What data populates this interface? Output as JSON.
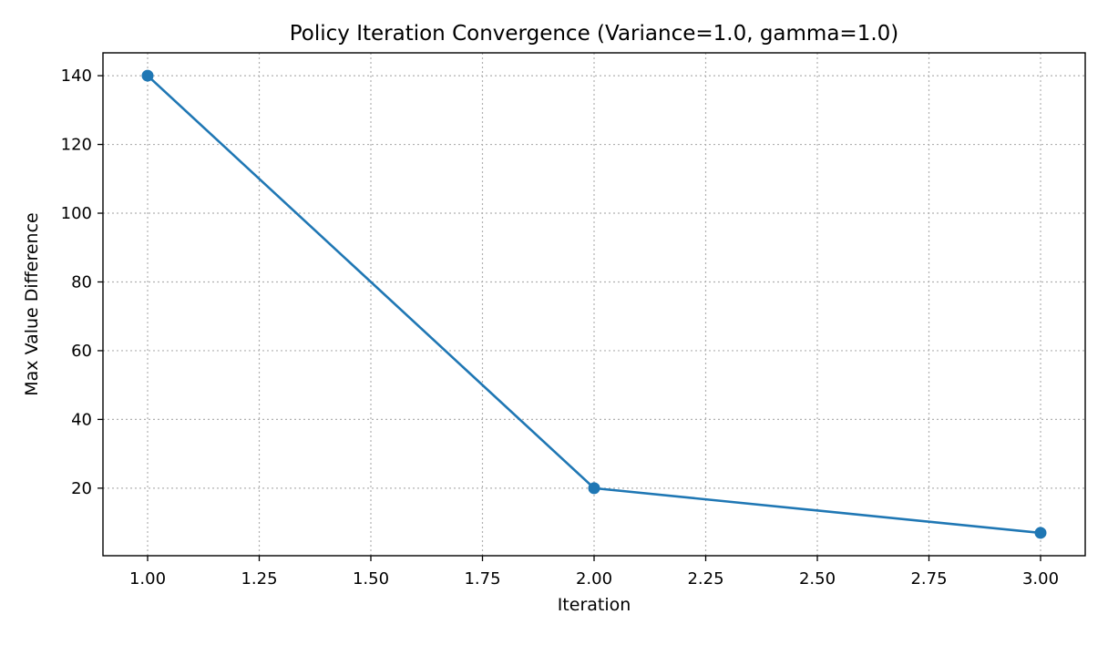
{
  "chart_data": {
    "type": "line",
    "title": "Policy Iteration Convergence (Variance=1.0, gamma=1.0)",
    "xlabel": "Iteration",
    "ylabel": "Max Value Difference",
    "x": [
      1,
      2,
      3
    ],
    "series": [
      {
        "values": [
          140,
          20,
          7
        ],
        "color": "#1f77b4",
        "marker": "circle"
      }
    ],
    "xlim": [
      0.9,
      3.1
    ],
    "ylim": [
      0.35,
      146.65
    ],
    "xticks": [
      1.0,
      1.25,
      1.5,
      1.75,
      2.0,
      2.25,
      2.5,
      2.75,
      3.0
    ],
    "xtick_labels": [
      "1.00",
      "1.25",
      "1.50",
      "1.75",
      "2.00",
      "2.25",
      "2.50",
      "2.75",
      "3.00"
    ],
    "yticks": [
      20,
      40,
      60,
      80,
      100,
      120,
      140
    ],
    "ytick_labels": [
      "20",
      "40",
      "60",
      "80",
      "100",
      "120",
      "140"
    ],
    "grid": true,
    "grid_style": "dotted",
    "legend": "none"
  }
}
